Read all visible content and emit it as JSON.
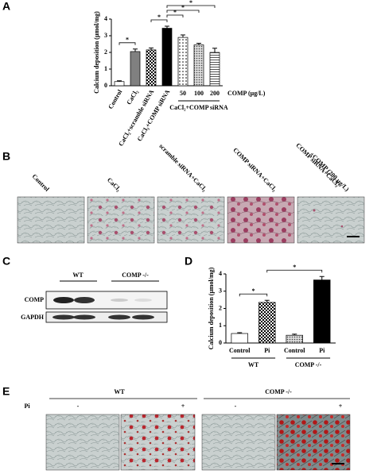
{
  "panel_labels": [
    "A",
    "B",
    "C",
    "D",
    "E"
  ],
  "chart_data": [
    {
      "type": "bar",
      "y_label": "Calcium deposition (μmol/mg)",
      "categories": [
        "Control",
        "CaCl₂",
        "CaCl₂+scramble siRNA",
        "CaCl₂+COMP siRNA",
        "50",
        "100",
        "200"
      ],
      "values": [
        0.25,
        2.05,
        2.15,
        3.45,
        2.9,
        2.45,
        2.0
      ],
      "errors": [
        0.05,
        0.15,
        0.12,
        0.12,
        0.15,
        0.1,
        0.25
      ],
      "fills": [
        "white",
        "#808080",
        "checker",
        "black",
        "dots",
        "dots-dense",
        "stripes"
      ],
      "ylim": [
        0,
        4
      ],
      "yticks": [
        0,
        1,
        2,
        3,
        4
      ],
      "groups": [
        {
          "label": "CaCl₂+COMP siRNA",
          "from": 4,
          "to": 6
        }
      ],
      "group_title": "COMP (μg/L)",
      "annotations": [
        {
          "text": "*",
          "pair": [
            0,
            1
          ]
        },
        {
          "text": "*",
          "pair": [
            2,
            3
          ]
        },
        {
          "text": "*",
          "pair": [
            3,
            4
          ]
        },
        {
          "text": "*",
          "pair": [
            3,
            5
          ]
        },
        {
          "text": "*",
          "pair": [
            3,
            6
          ]
        }
      ]
    },
    {
      "type": "bar",
      "y_label": "Calcium deposition (μmol/mg)",
      "categories": [
        "Control",
        "Pi",
        "Control",
        "Pi"
      ],
      "values": [
        0.55,
        2.35,
        0.45,
        3.65
      ],
      "errors": [
        0.05,
        0.12,
        0.06,
        0.2
      ],
      "fills": [
        "white",
        "checker",
        "dots-dense",
        "black"
      ],
      "ylim": [
        0,
        4
      ],
      "yticks": [
        0,
        1,
        2,
        3,
        4
      ],
      "groups": [
        {
          "label": "WT",
          "from": 0,
          "to": 1
        },
        {
          "label": "COMP -/-",
          "from": 2,
          "to": 3
        }
      ],
      "annotations": [
        {
          "text": "*",
          "pair": [
            0,
            1
          ]
        },
        {
          "text": "*",
          "pair": [
            1,
            3
          ]
        }
      ]
    }
  ],
  "panel_b": {
    "columns": [
      [
        "Control"
      ],
      [
        "CaCl₂"
      ],
      [
        "scramble siRNA+CaCl₂"
      ],
      [
        "COMP siRNA+CaCl₂"
      ],
      [
        "COMP siRNA+CaCl₂",
        "+COMP (200 μg/L)"
      ]
    ]
  },
  "panel_c": {
    "groups": [
      "WT",
      "COMP -/-"
    ],
    "rows": [
      "COMP",
      "GAPDH"
    ]
  },
  "panel_e": {
    "groups": [
      "WT",
      "COMP -/-"
    ],
    "row_label": "Pi",
    "conditions": [
      "-",
      "+",
      "-",
      "+"
    ]
  }
}
